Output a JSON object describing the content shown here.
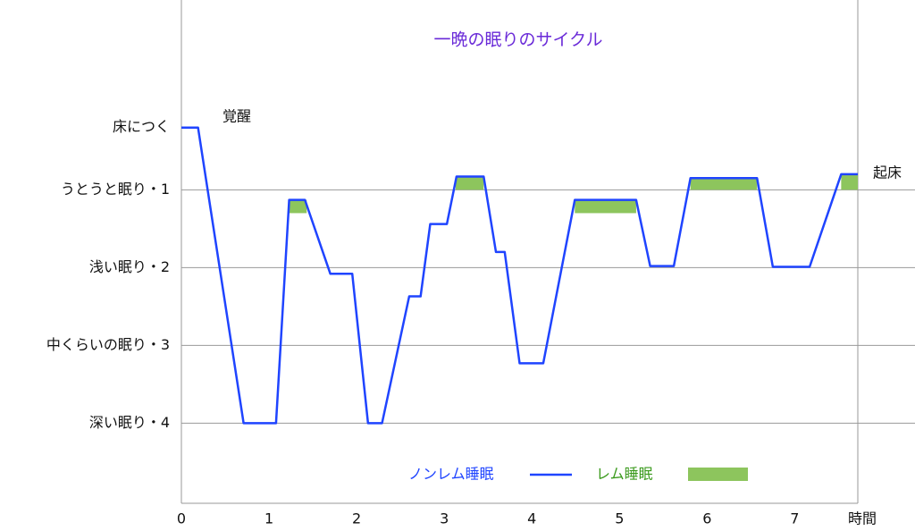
{
  "chart_data": {
    "type": "line",
    "title": "一晩の眠りのサイクル",
    "x_label": "時間",
    "annotations": [
      "覚醒",
      "起床"
    ],
    "x": [
      0,
      0.19,
      0.71,
      1.08,
      1.23,
      1.41,
      1.7,
      1.95,
      2.13,
      2.29,
      2.6,
      2.73,
      2.84,
      3.03,
      3.14,
      3.45,
      3.59,
      3.69,
      3.86,
      4.13,
      4.49,
      5.19,
      5.35,
      5.62,
      5.81,
      6.57,
      6.75,
      7.17,
      7.53,
      7.72
    ],
    "series": [
      {
        "name": "ノンレム睡眠",
        "color": "#1f44ff",
        "values": [
          0.2,
          0.2,
          4,
          4,
          1.13,
          1.13,
          2.08,
          2.08,
          4,
          4,
          2.37,
          2.37,
          1.44,
          1.44,
          0.83,
          0.83,
          1.8,
          1.8,
          3.23,
          3.23,
          1.13,
          1.13,
          1.98,
          1.98,
          0.85,
          0.85,
          1.99,
          1.99,
          0.8,
          0.8
        ]
      }
    ],
    "rem": {
      "name": "レム睡眠",
      "color": "#8dc55d",
      "start": [
        1.23,
        3.13,
        4.49,
        5.81,
        7.53
      ],
      "end": [
        1.43,
        3.45,
        5.19,
        6.57,
        7.72
      ],
      "top": [
        1.13,
        0.83,
        1.13,
        0.85,
        0.8
      ],
      "bottom": [
        1.3,
        1.0,
        1.3,
        1.0,
        1.0
      ]
    },
    "xlim": [
      0,
      7.72
    ],
    "xticks": [
      0,
      1,
      2,
      3,
      4,
      5,
      6,
      7
    ],
    "ylim": [
      -1.44,
      5.03
    ],
    "invert_y": true,
    "yticks": [
      {
        "value": 0.2,
        "label": "床につく"
      },
      {
        "value": 1,
        "label": "うとうと眠り・1"
      },
      {
        "value": 2,
        "label": "浅い眠り・2"
      },
      {
        "value": 3,
        "label": "中くらいの眠り・3"
      },
      {
        "value": 4,
        "label": "深い眠り・4"
      }
    ],
    "grid_values": [
      1,
      2,
      3,
      4
    ]
  }
}
